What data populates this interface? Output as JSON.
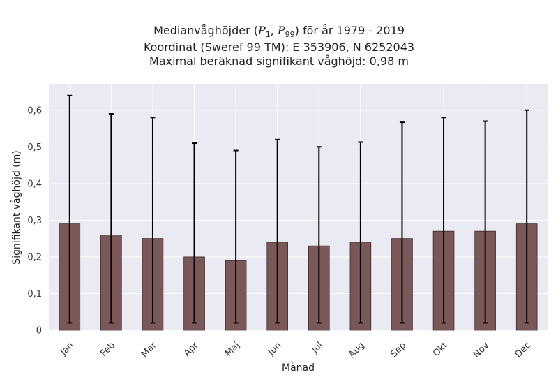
{
  "chart_data": {
    "type": "bar",
    "title_lines": {
      "line1_prefix": "Medianvåghöjder (",
      "p_symbol": "P",
      "p_sub_1": "1",
      "p_sub_2": "99",
      "line1_suffix": ") för år 1979 - 2019",
      "line2": "Koordinat (Sweref 99 TM): E 353906, N 6252043",
      "line3": "Maximal beräknad signifikant våghöjd: 0,98 m"
    },
    "xlabel": "Månad",
    "ylabel": "Signifikant våghöjd (m)",
    "categories": [
      "Jan",
      "Feb",
      "Mar",
      "Apr",
      "Maj",
      "Jun",
      "Jul",
      "Aug",
      "Sep",
      "Okt",
      "Nov",
      "Dec"
    ],
    "series": [
      {
        "values": [
          0.29,
          0.26,
          0.25,
          0.2,
          0.19,
          0.24,
          0.23,
          0.24,
          0.25,
          0.27,
          0.27,
          0.29
        ],
        "err_low": [
          0.02,
          0.02,
          0.02,
          0.02,
          0.02,
          0.02,
          0.02,
          0.02,
          0.02,
          0.02,
          0.02,
          0.02
        ],
        "err_high": [
          0.64,
          0.59,
          0.58,
          0.51,
          0.49,
          0.52,
          0.5,
          0.513,
          0.567,
          0.58,
          0.57,
          0.6
        ]
      }
    ],
    "yticks": [
      0,
      0.1,
      0.2,
      0.3,
      0.4,
      0.5,
      0.6
    ],
    "ytick_labels": [
      "0",
      "0,1",
      "0,2",
      "0,3",
      "0,4",
      "0,5",
      "0,6"
    ],
    "ylim": [
      0,
      0.67
    ],
    "grid": true,
    "colors": {
      "bar": "#7b5858",
      "bar_edge": "#3a2a2a",
      "error_bar": "#000000",
      "plot_background": "#eaeaf2",
      "grid": "#ffffff"
    }
  }
}
